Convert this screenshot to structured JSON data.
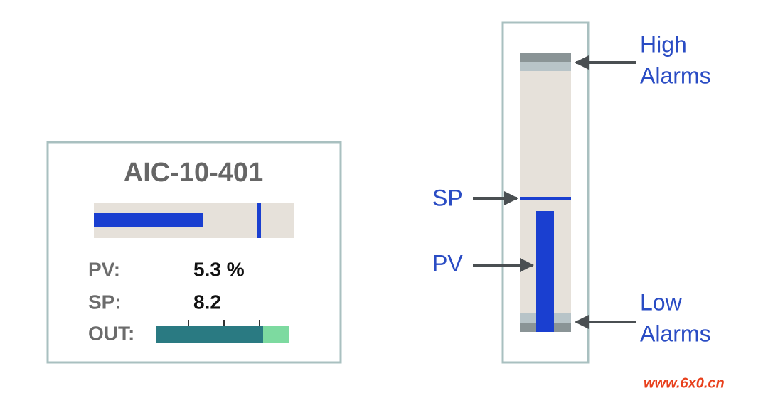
{
  "faceplate": {
    "title": "AIC-10-401",
    "rows": [
      {
        "label": "PV:",
        "value": "5.3 %"
      },
      {
        "label": "SP:",
        "value": "8.2"
      }
    ],
    "out_label": "OUT:"
  },
  "bargraph": {
    "high_alarms": [
      "High",
      "Alarms"
    ],
    "sp": "SP",
    "pv": "PV",
    "low_alarms": [
      "Low",
      "Alarms"
    ]
  },
  "watermark": "www.6x0.cn"
}
